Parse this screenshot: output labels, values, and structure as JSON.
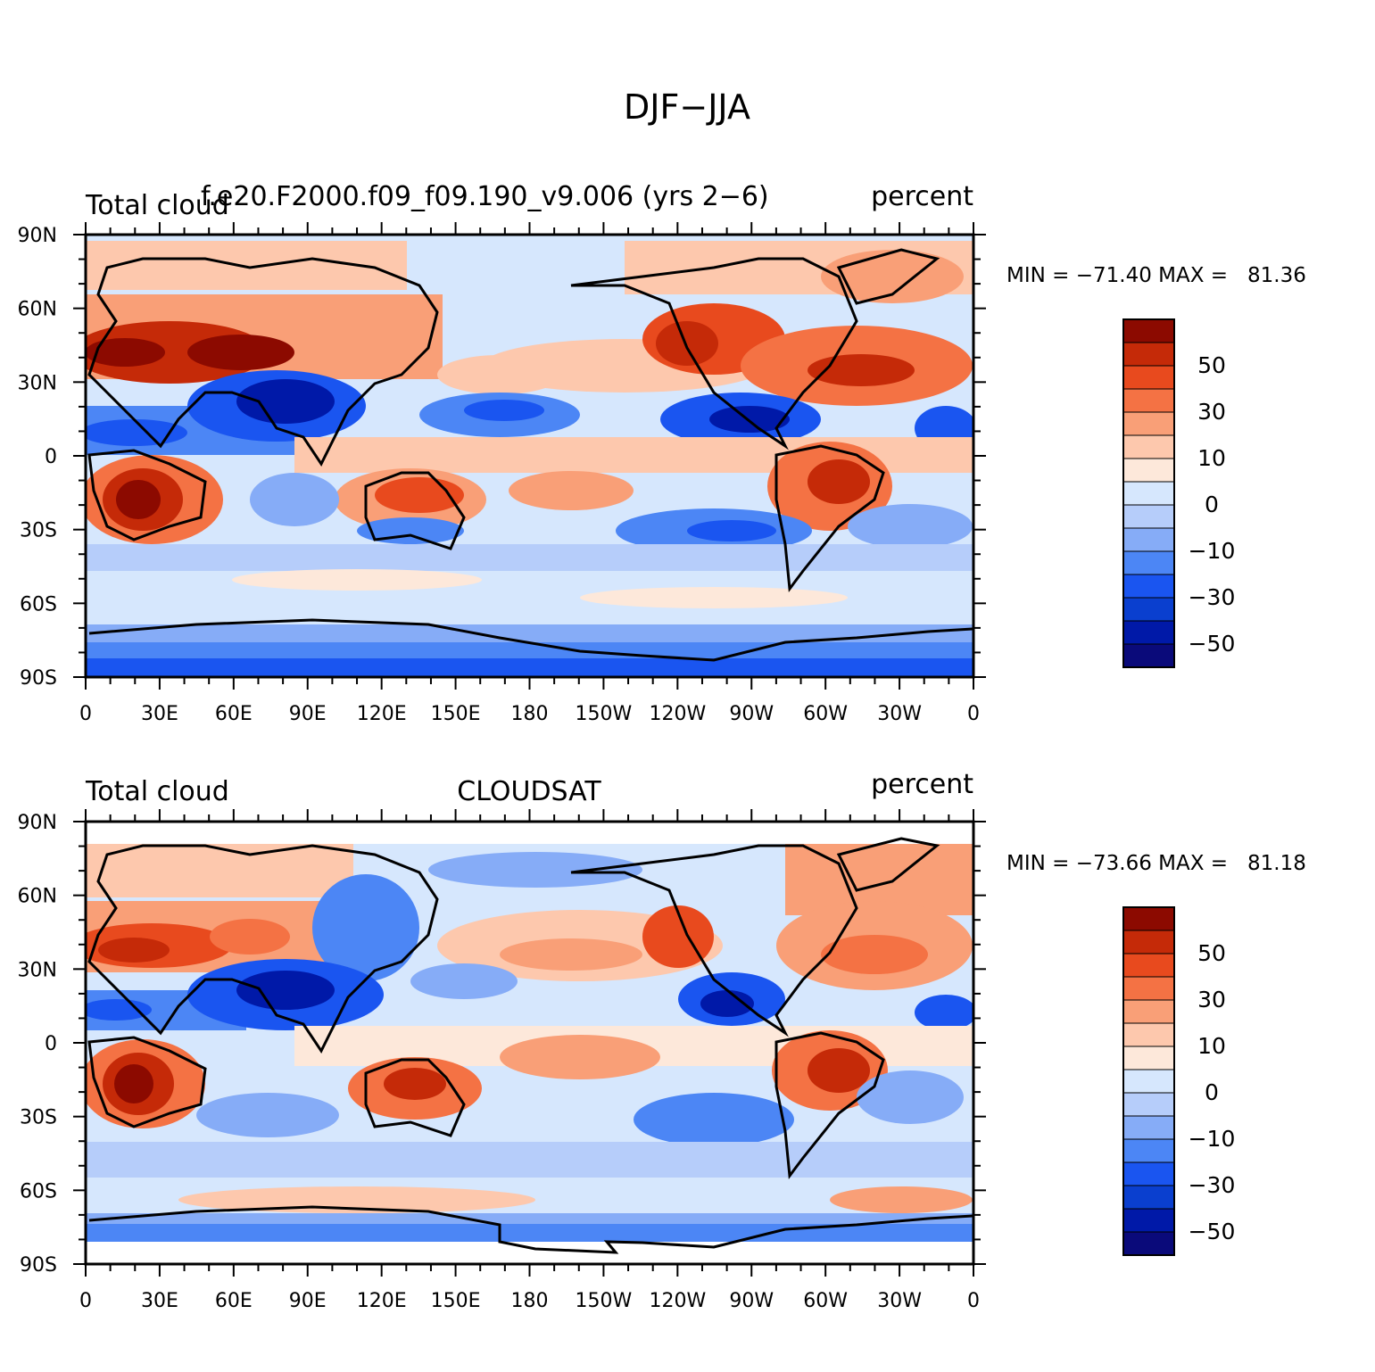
{
  "figure_title": "DJF−JJA",
  "palette": [
    "#0a0a7a",
    "#0019a8",
    "#0a3fcf",
    "#1a55f0",
    "#4c86f5",
    "#86acf7",
    "#b6cdfa",
    "#d6e7fd",
    "#fde8da",
    "#fdc8ad",
    "#f99f77",
    "#f47244",
    "#e84a1e",
    "#c52a08",
    "#8c0a00"
  ],
  "colorbar_labels": [
    "50",
    "30",
    "10",
    "0",
    "−10",
    "−30",
    "−50"
  ],
  "y_ticks": [
    "90N",
    "60N",
    "30N",
    "0",
    "30S",
    "60S",
    "90S"
  ],
  "x_ticks": [
    "0",
    "30E",
    "60E",
    "90E",
    "120E",
    "150E",
    "180",
    "150W",
    "120W",
    "90W",
    "60W",
    "30W",
    "0"
  ],
  "panels": [
    {
      "left_title": "Total cloud",
      "center_title": "f.e20.F2000.f09_f09.190_v9.006 (yrs 2−6)",
      "right_title": "percent",
      "minmax": "MIN = −71.40 MAX =   81.36"
    },
    {
      "left_title": "Total cloud",
      "center_title": "CLOUDSAT",
      "right_title": "percent",
      "minmax": "MIN = −73.66 MAX =   81.18"
    }
  ]
}
